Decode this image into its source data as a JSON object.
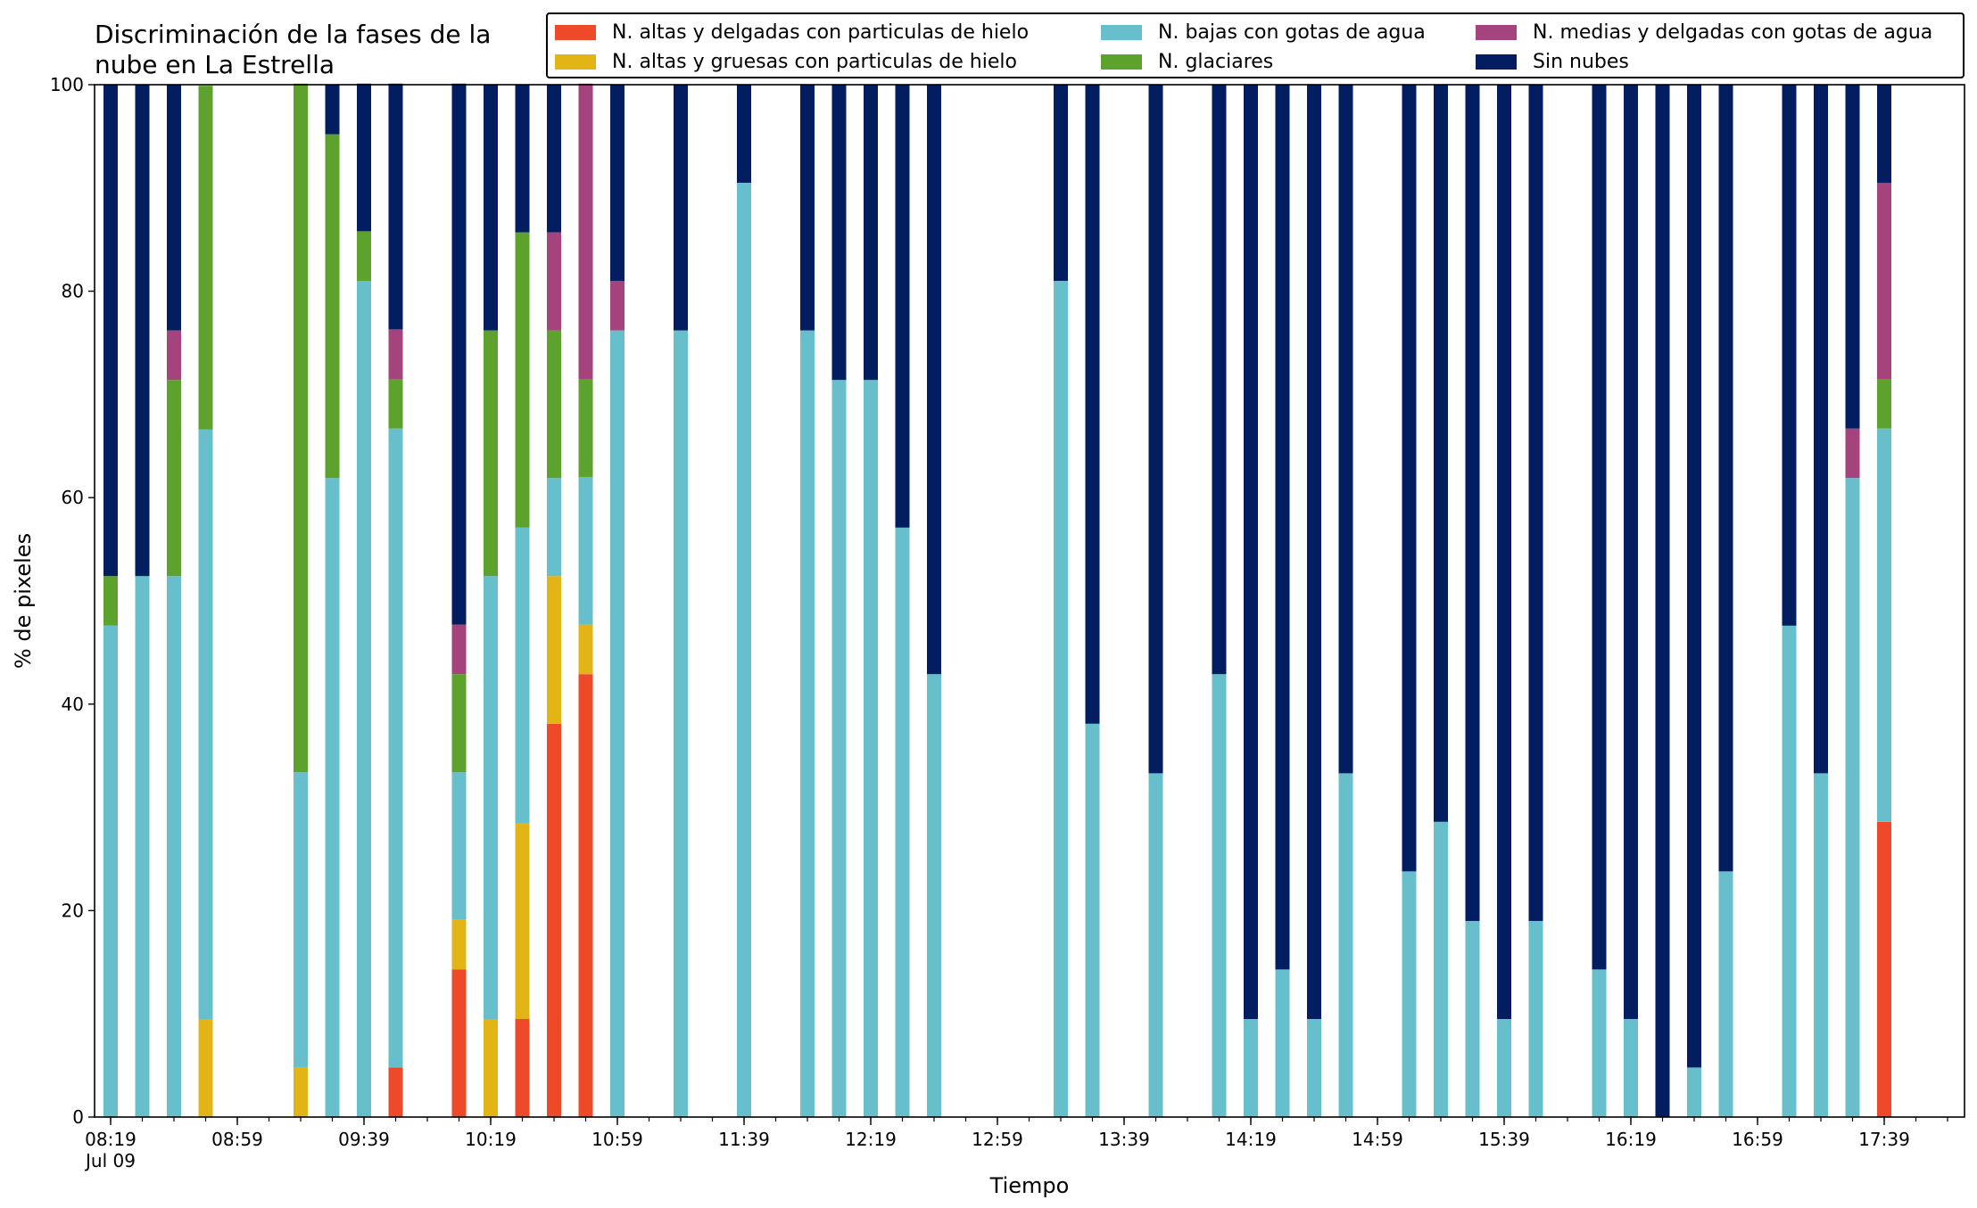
{
  "chart_data": {
    "type": "bar",
    "stacked": true,
    "title": "Discriminación de la fases de la\nnube en La Estrella",
    "xlabel": "Tiempo",
    "ylabel": "% de pixeles",
    "ylim": [
      0,
      100
    ],
    "yticks": [
      "0",
      "20",
      "40",
      "60",
      "80",
      "100"
    ],
    "xticks": [
      {
        "time": "08:19",
        "sub": "Jul 09"
      },
      {
        "time": "08:59",
        "sub": ""
      },
      {
        "time": "09:39",
        "sub": ""
      },
      {
        "time": "10:19",
        "sub": ""
      },
      {
        "time": "10:59",
        "sub": ""
      },
      {
        "time": "11:39",
        "sub": ""
      },
      {
        "time": "12:19",
        "sub": ""
      },
      {
        "time": "12:59",
        "sub": ""
      },
      {
        "time": "13:39",
        "sub": ""
      },
      {
        "time": "14:19",
        "sub": ""
      },
      {
        "time": "14:59",
        "sub": ""
      },
      {
        "time": "15:39",
        "sub": ""
      },
      {
        "time": "16:19",
        "sub": ""
      },
      {
        "time": "16:59",
        "sub": ""
      },
      {
        "time": "17:39",
        "sub": ""
      }
    ],
    "bar_interval_minutes": 10,
    "grid": false,
    "legend_position": "top",
    "categories": [
      "08:19",
      "08:29",
      "08:39",
      "08:49",
      "08:59",
      "09:09",
      "09:19",
      "09:29",
      "09:39",
      "09:49",
      "09:59",
      "10:09",
      "10:19",
      "10:29",
      "10:39",
      "10:49",
      "10:59",
      "11:09",
      "11:19",
      "11:29",
      "11:39",
      "11:49",
      "11:59",
      "12:09",
      "12:19",
      "12:29",
      "12:39",
      "12:49",
      "12:59",
      "13:09",
      "13:19",
      "13:29",
      "13:39",
      "13:49",
      "13:59",
      "14:09",
      "14:19",
      "14:29",
      "14:39",
      "14:49",
      "14:59",
      "15:09",
      "15:19",
      "15:29",
      "15:39",
      "15:49",
      "15:59",
      "16:09",
      "16:19",
      "16:29",
      "16:39",
      "16:49",
      "16:59",
      "17:09",
      "17:19",
      "17:29",
      "17:39"
    ],
    "series": [
      {
        "name": "N. altas y delgadas con particulas de hielo",
        "color": "#ee4a2a",
        "values": [
          0,
          0,
          0,
          0,
          0,
          0,
          0,
          0,
          0,
          4.8,
          0,
          14.3,
          0,
          9.5,
          38.1,
          42.9,
          0,
          0,
          0,
          0,
          0,
          0,
          0,
          0,
          0,
          0,
          0,
          0,
          0,
          0,
          0,
          0,
          0,
          0,
          0,
          0,
          0,
          0,
          0,
          0,
          0,
          0,
          0,
          0,
          0,
          0,
          0,
          0,
          0,
          0,
          0,
          0,
          0,
          0,
          0,
          0,
          28.6
        ]
      },
      {
        "name": "N. altas y gruesas con particulas de hielo",
        "color": "#e3b416",
        "values": [
          0,
          0,
          0,
          9.5,
          0,
          0,
          4.8,
          0,
          0,
          0,
          0,
          4.8,
          9.5,
          19.0,
          14.3,
          4.8,
          0,
          0,
          0,
          0,
          0,
          0,
          0,
          0,
          0,
          0,
          0,
          0,
          0,
          0,
          0,
          0,
          0,
          0,
          0,
          0,
          0,
          0,
          0,
          0,
          0,
          0,
          0,
          0,
          0,
          0,
          0,
          0,
          0,
          0,
          0,
          0,
          0,
          0,
          0,
          0,
          0
        ]
      },
      {
        "name": "N. bajas con gotas de agua",
        "color": "#67bfcb",
        "values": [
          47.6,
          52.4,
          52.4,
          57.1,
          0,
          0,
          28.6,
          61.9,
          81.0,
          61.9,
          0,
          14.3,
          42.9,
          28.6,
          9.5,
          14.3,
          76.2,
          0,
          76.2,
          0,
          90.5,
          0,
          76.2,
          71.4,
          71.4,
          57.1,
          42.9,
          0,
          0,
          0,
          81.0,
          38.1,
          0,
          33.3,
          0,
          42.9,
          9.5,
          14.3,
          9.5,
          33.3,
          0,
          23.8,
          28.6,
          19.0,
          9.5,
          19.0,
          0,
          14.3,
          9.5,
          0,
          4.8,
          23.8,
          0,
          47.6,
          33.3,
          61.9,
          38.1
        ]
      },
      {
        "name": "N. glaciares",
        "color": "#5ca22c",
        "values": [
          4.8,
          0,
          19.0,
          33.3,
          0,
          0,
          66.7,
          33.3,
          4.8,
          4.8,
          0,
          9.5,
          23.8,
          28.6,
          14.3,
          9.5,
          0,
          0,
          0,
          0,
          0,
          0,
          0,
          0,
          0,
          0,
          0,
          0,
          0,
          0,
          0,
          0,
          0,
          0,
          0,
          0,
          0,
          0,
          0,
          0,
          0,
          0,
          0,
          0,
          0,
          0,
          0,
          0,
          0,
          0,
          0,
          0,
          0,
          0,
          0,
          0,
          4.8
        ]
      },
      {
        "name": "N. medias y delgadas con gotas de agua",
        "color": "#a5447c",
        "values": [
          0,
          0,
          4.8,
          0,
          0,
          0,
          0,
          0,
          0,
          4.8,
          0,
          4.8,
          0,
          0,
          9.5,
          28.6,
          4.8,
          0,
          0,
          0,
          0,
          0,
          0,
          0,
          0,
          0,
          0,
          0,
          0,
          0,
          0,
          0,
          0,
          0,
          0,
          0,
          0,
          0,
          0,
          0,
          0,
          0,
          0,
          0,
          0,
          0,
          0,
          0,
          0,
          0,
          0,
          0,
          0,
          0,
          0,
          4.8,
          19.0
        ]
      },
      {
        "name": "Sin nubes",
        "color": "#021e60",
        "values": [
          47.6,
          47.6,
          23.8,
          0,
          0,
          0,
          0,
          4.8,
          14.3,
          23.8,
          0,
          52.4,
          23.8,
          14.3,
          14.3,
          0,
          19.0,
          0,
          23.8,
          0,
          9.5,
          0,
          23.8,
          28.6,
          28.6,
          42.9,
          57.1,
          0,
          0,
          0,
          19.0,
          61.9,
          0,
          66.7,
          0,
          57.1,
          90.5,
          85.7,
          90.5,
          66.7,
          0,
          76.2,
          71.4,
          81.0,
          90.5,
          81.0,
          0,
          85.7,
          90.5,
          100,
          95.2,
          76.2,
          0,
          52.4,
          66.7,
          33.3,
          9.5
        ]
      }
    ]
  }
}
